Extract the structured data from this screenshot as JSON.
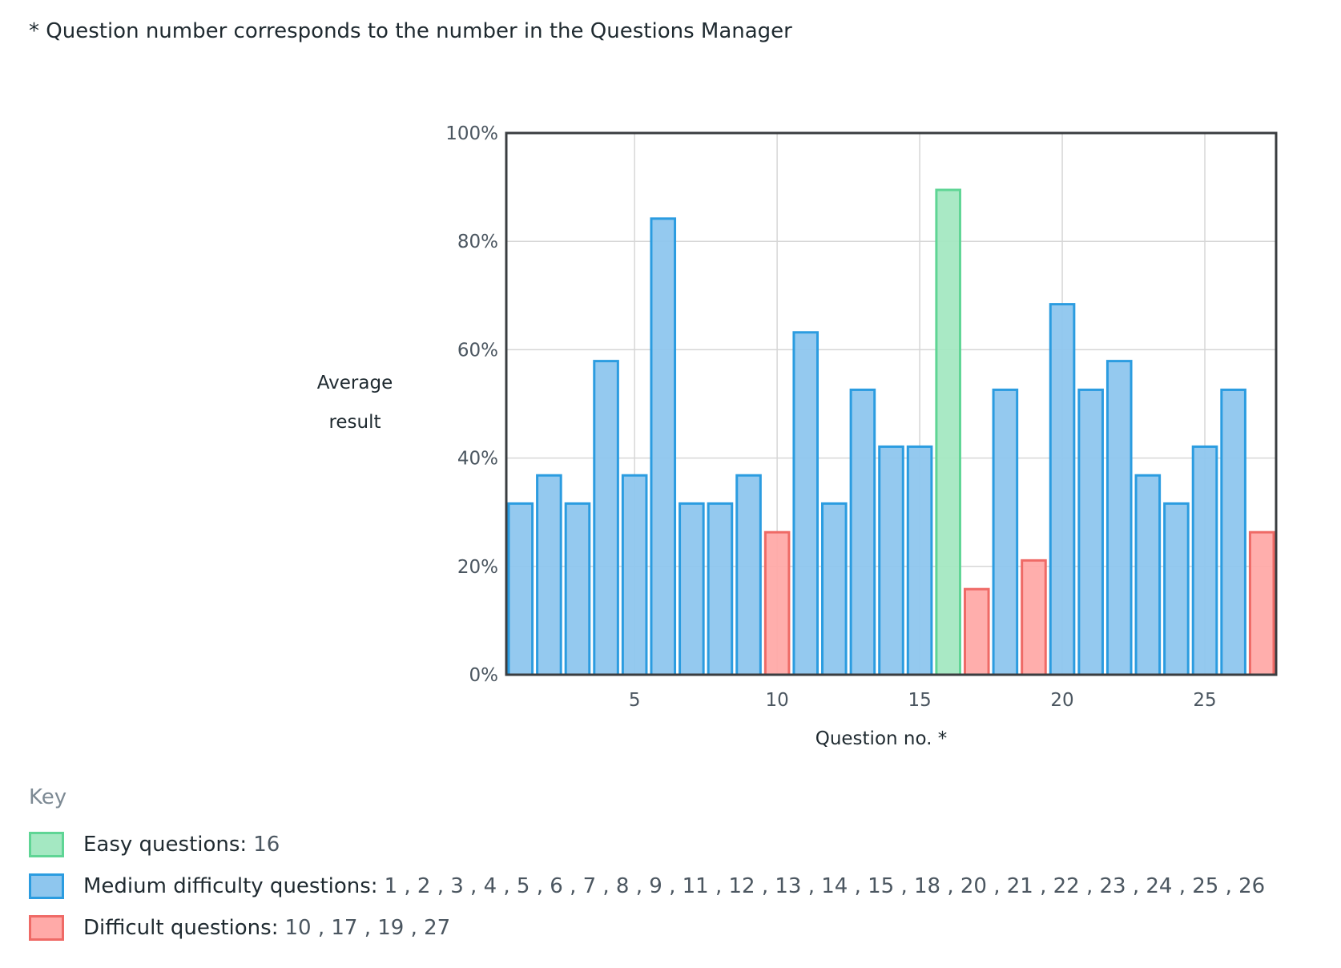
{
  "note": "* Question number corresponds to the number in the Questions Manager",
  "colors": {
    "easy_fill": "#a4e8c2",
    "easy_stroke": "#5fd595",
    "medium_fill": "#8ec6ee",
    "medium_stroke": "#2b9ce0",
    "difficult_fill": "#ffaaa8",
    "difficult_stroke": "#ef6a66",
    "grid": "#d6d6d6",
    "frame": "#3a3d40",
    "tick_text": "#4b5660"
  },
  "chart_data": {
    "type": "bar",
    "title": "",
    "xlabel": "Question no. *",
    "ylabel": [
      "Average",
      "result"
    ],
    "ylim": [
      0,
      100
    ],
    "yticks": [
      0,
      20,
      40,
      60,
      80,
      100
    ],
    "ytick_labels": [
      "0%",
      "20%",
      "40%",
      "60%",
      "80%",
      "100%"
    ],
    "xticks": [
      5,
      10,
      15,
      20,
      25
    ],
    "xtick_labels": [
      "5",
      "10",
      "15",
      "20",
      "25"
    ],
    "grid": true,
    "categories": [
      1,
      2,
      3,
      4,
      5,
      6,
      7,
      8,
      9,
      10,
      11,
      12,
      13,
      14,
      15,
      16,
      17,
      18,
      19,
      20,
      21,
      22,
      23,
      24,
      25,
      26,
      27
    ],
    "values": [
      31.6,
      36.8,
      31.6,
      57.9,
      36.8,
      84.2,
      31.6,
      31.6,
      36.8,
      26.3,
      63.2,
      31.6,
      52.6,
      42.1,
      42.1,
      89.5,
      15.8,
      52.6,
      21.1,
      68.4,
      52.6,
      57.9,
      36.8,
      31.6,
      42.1,
      52.6,
      26.3
    ],
    "difficulty": [
      "medium",
      "medium",
      "medium",
      "medium",
      "medium",
      "medium",
      "medium",
      "medium",
      "medium",
      "difficult",
      "medium",
      "medium",
      "medium",
      "medium",
      "medium",
      "easy",
      "difficult",
      "medium",
      "difficult",
      "medium",
      "medium",
      "medium",
      "medium",
      "medium",
      "medium",
      "medium",
      "difficult"
    ]
  },
  "legend": {
    "title": "Key",
    "items": [
      {
        "label": "Easy questions:",
        "values": "16"
      },
      {
        "label": "Medium difficulty questions:",
        "values": "1 , 2 , 3 , 4 , 5 , 6 , 7 , 8 , 9 , 11 , 12 , 13 , 14 , 15 , 18 , 20 , 21 , 22 , 23 , 24 , 25 , 26"
      },
      {
        "label": "Difficult questions:",
        "values": "10 , 17 , 19 , 27"
      }
    ]
  }
}
